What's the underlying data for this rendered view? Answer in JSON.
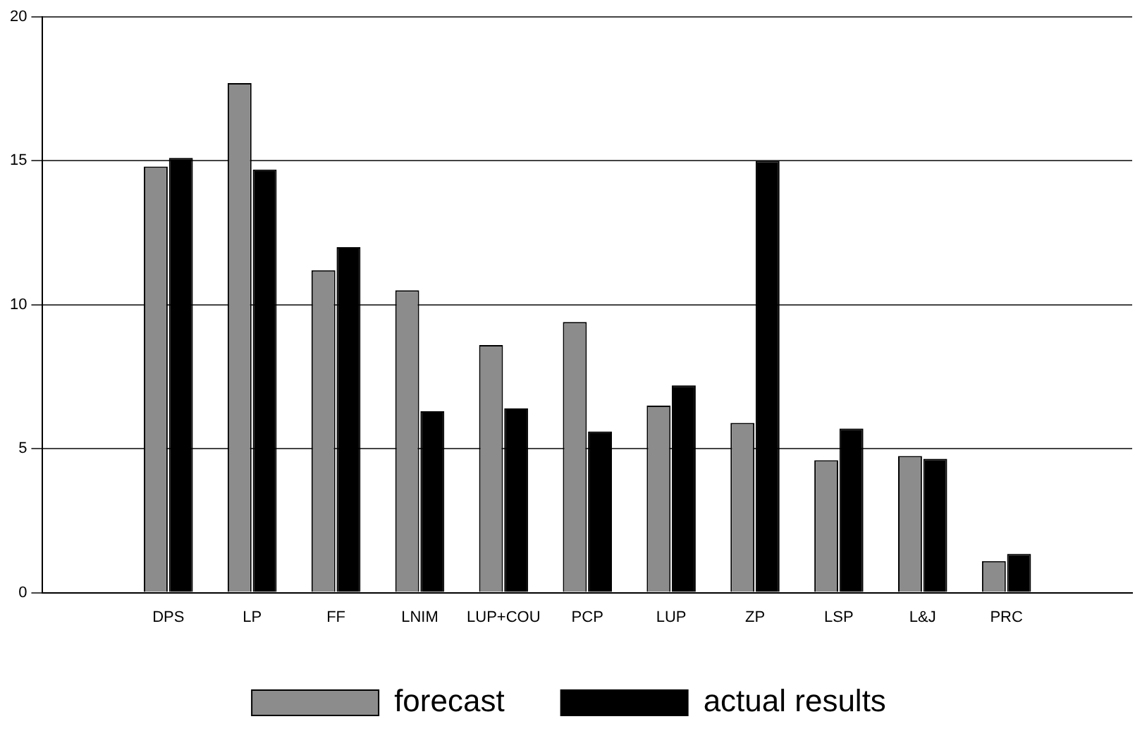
{
  "chart_data": {
    "type": "bar",
    "categories": [
      null,
      "DPS",
      "LP",
      "FF",
      "LNIM",
      "LUP+COU",
      "PCP",
      "LUP",
      "ZP",
      "LSP",
      "L&J",
      "PRC",
      null
    ],
    "series": [
      {
        "name": "forecast",
        "color": "#8c8c8c",
        "values": [
          null,
          14.8,
          17.7,
          11.2,
          10.5,
          8.6,
          9.4,
          6.5,
          5.9,
          4.6,
          4.75,
          1.1,
          null
        ]
      },
      {
        "name": "actual results",
        "color": "#000000",
        "values": [
          null,
          15.1,
          14.7,
          12.0,
          6.3,
          6.4,
          5.6,
          7.2,
          15.0,
          5.7,
          4.65,
          1.35,
          null
        ]
      }
    ],
    "ylim": [
      0,
      20
    ],
    "yticks": [
      0,
      5,
      10,
      15,
      20
    ],
    "grid": "y",
    "legend": "bottom"
  }
}
